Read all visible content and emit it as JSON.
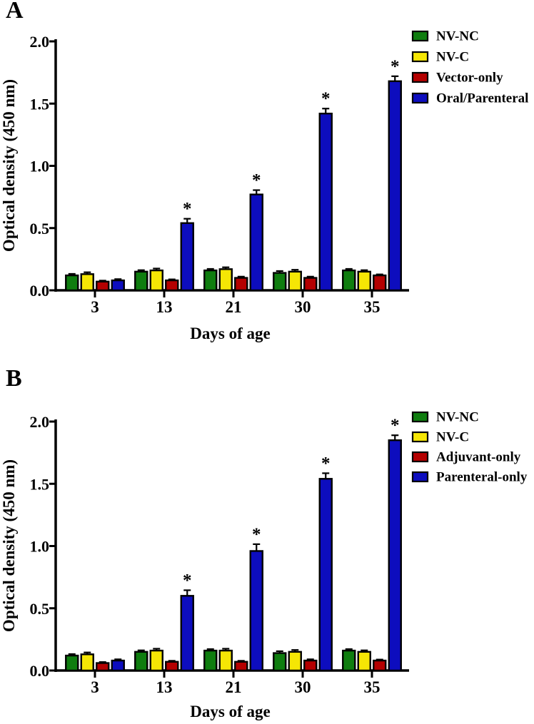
{
  "chart_data": [
    {
      "type": "bar",
      "panel_label": "A",
      "title": "",
      "xlabel": "Days of age",
      "ylabel": "Optical density (450 nm)",
      "categories": [
        "3",
        "13",
        "21",
        "30",
        "35"
      ],
      "ylim": [
        0,
        2
      ],
      "yticks": [
        "0.0",
        "0.5",
        "1.0",
        "1.5",
        "2.0"
      ],
      "grid": false,
      "legend_position": "top-right",
      "significance_marker": "*",
      "series": [
        {
          "name": "NV-NC",
          "color": "#0f7d0f",
          "values": [
            0.12,
            0.15,
            0.16,
            0.14,
            0.16
          ],
          "errors": [
            0.012,
            0.012,
            0.012,
            0.015,
            0.012
          ],
          "significant": [
            false,
            false,
            false,
            false,
            false
          ]
        },
        {
          "name": "NV-C",
          "color": "#f5e605",
          "values": [
            0.13,
            0.16,
            0.17,
            0.15,
            0.15
          ],
          "errors": [
            0.015,
            0.015,
            0.015,
            0.015,
            0.012
          ],
          "significant": [
            false,
            false,
            false,
            false,
            false
          ]
        },
        {
          "name": "Vector-only",
          "color": "#b40000",
          "values": [
            0.07,
            0.08,
            0.1,
            0.1,
            0.12
          ],
          "errors": [
            0.008,
            0.008,
            0.01,
            0.01,
            0.008
          ],
          "significant": [
            false,
            false,
            false,
            false,
            false
          ]
        },
        {
          "name": "Oral/Parenteral",
          "color": "#0d0dbe",
          "values": [
            0.08,
            0.54,
            0.77,
            1.42,
            1.68
          ],
          "errors": [
            0.01,
            0.035,
            0.035,
            0.04,
            0.04
          ],
          "significant": [
            false,
            true,
            true,
            true,
            true
          ]
        }
      ]
    },
    {
      "type": "bar",
      "panel_label": "B",
      "title": "",
      "xlabel": "Days of age",
      "ylabel": "Optical density (450 nm)",
      "categories": [
        "3",
        "13",
        "21",
        "30",
        "35"
      ],
      "ylim": [
        0,
        2
      ],
      "yticks": [
        "0.0",
        "0.5",
        "1.0",
        "1.5",
        "2.0"
      ],
      "grid": false,
      "legend_position": "top-right",
      "significance_marker": "*",
      "series": [
        {
          "name": "NV-NC",
          "color": "#0f7d0f",
          "values": [
            0.12,
            0.15,
            0.16,
            0.14,
            0.16
          ],
          "errors": [
            0.012,
            0.012,
            0.012,
            0.015,
            0.012
          ],
          "significant": [
            false,
            false,
            false,
            false,
            false
          ]
        },
        {
          "name": "NV-C",
          "color": "#f5e605",
          "values": [
            0.13,
            0.16,
            0.16,
            0.15,
            0.15
          ],
          "errors": [
            0.015,
            0.015,
            0.015,
            0.015,
            0.012
          ],
          "significant": [
            false,
            false,
            false,
            false,
            false
          ]
        },
        {
          "name": "Adjuvant-only",
          "color": "#b40000",
          "values": [
            0.06,
            0.07,
            0.07,
            0.08,
            0.08
          ],
          "errors": [
            0.008,
            0.008,
            0.008,
            0.01,
            0.008
          ],
          "significant": [
            false,
            false,
            false,
            false,
            false
          ]
        },
        {
          "name": "Parenteral-only",
          "color": "#0d0dbe",
          "values": [
            0.08,
            0.6,
            0.96,
            1.54,
            1.85
          ],
          "errors": [
            0.01,
            0.045,
            0.055,
            0.045,
            0.04
          ],
          "significant": [
            false,
            true,
            true,
            true,
            true
          ]
        }
      ]
    }
  ]
}
